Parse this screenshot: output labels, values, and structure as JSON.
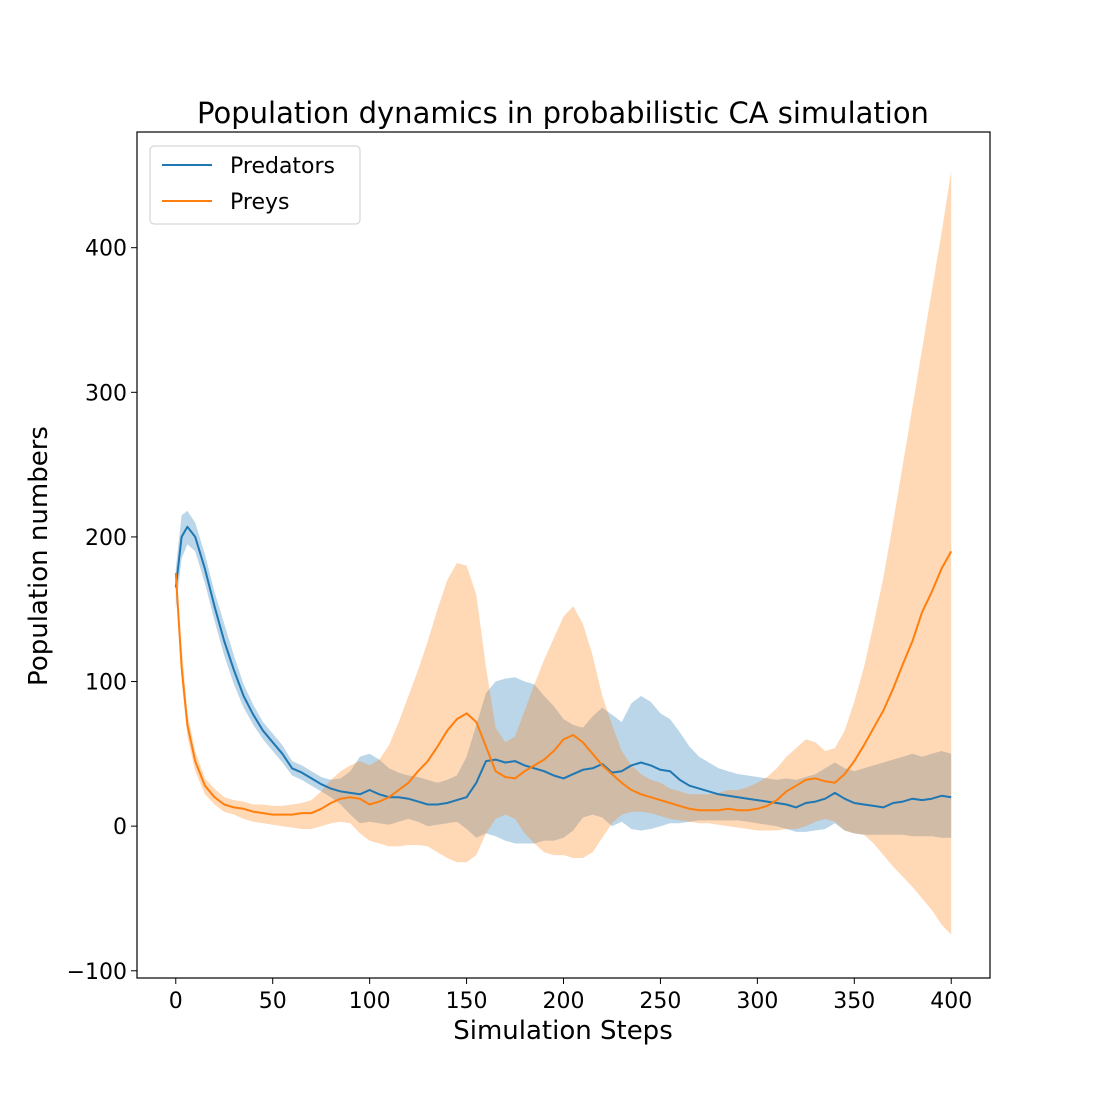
{
  "chart_data": {
    "type": "line",
    "title": "Population dynamics in probabilistic CA simulation",
    "xlabel": "Simulation Steps",
    "ylabel": "Population numbers",
    "xlim": [
      -20,
      420
    ],
    "ylim": [
      -105,
      480
    ],
    "x_ticks": [
      0,
      50,
      100,
      150,
      200,
      250,
      300,
      350,
      400
    ],
    "x_tick_labels": [
      "0",
      "50",
      "100",
      "150",
      "200",
      "250",
      "300",
      "350",
      "400"
    ],
    "y_ticks": [
      -100,
      0,
      100,
      200,
      300,
      400
    ],
    "y_tick_labels": [
      "−100",
      "0",
      "100",
      "200",
      "300",
      "400"
    ],
    "grid": false,
    "legend_position": "top-left",
    "series": [
      {
        "name": "Predators",
        "color": "#1f77b4",
        "band_color": "#1f77b4",
        "band_opacity": 0.3,
        "x": [
          0,
          3,
          6,
          10,
          15,
          20,
          25,
          30,
          35,
          40,
          45,
          50,
          55,
          60,
          65,
          70,
          75,
          80,
          85,
          90,
          95,
          100,
          105,
          110,
          115,
          120,
          125,
          130,
          135,
          140,
          145,
          150,
          155,
          160,
          165,
          170,
          175,
          180,
          185,
          190,
          195,
          200,
          205,
          210,
          215,
          220,
          225,
          230,
          235,
          240,
          245,
          250,
          255,
          260,
          265,
          270,
          275,
          280,
          285,
          290,
          295,
          300,
          305,
          310,
          315,
          320,
          325,
          330,
          335,
          340,
          345,
          350,
          355,
          360,
          365,
          370,
          375,
          380,
          385,
          390,
          395,
          400
        ],
        "mean": [
          165,
          200,
          207,
          200,
          178,
          152,
          128,
          108,
          90,
          77,
          66,
          58,
          50,
          40,
          37,
          33,
          29,
          26,
          24,
          23,
          22,
          25,
          22,
          20,
          20,
          19,
          17,
          15,
          15,
          16,
          18,
          20,
          30,
          45,
          46,
          44,
          45,
          42,
          40,
          38,
          35,
          33,
          36,
          39,
          40,
          43,
          37,
          38,
          42,
          44,
          42,
          39,
          38,
          32,
          28,
          26,
          24,
          22,
          21,
          20,
          19,
          18,
          17,
          16,
          15,
          13,
          16,
          17,
          19,
          23,
          19,
          16,
          15,
          14,
          13,
          16,
          17,
          19,
          18,
          19,
          21,
          20
        ],
        "upper": [
          178,
          215,
          218,
          210,
          188,
          162,
          140,
          118,
          98,
          84,
          72,
          64,
          56,
          45,
          42,
          38,
          34,
          32,
          33,
          38,
          48,
          50,
          46,
          40,
          37,
          35,
          34,
          32,
          30,
          32,
          35,
          48,
          70,
          92,
          100,
          102,
          103,
          100,
          98,
          90,
          83,
          74,
          70,
          68,
          76,
          82,
          77,
          72,
          85,
          90,
          86,
          78,
          74,
          65,
          55,
          48,
          44,
          40,
          38,
          36,
          35,
          34,
          33,
          32,
          33,
          32,
          34,
          36,
          40,
          44,
          40,
          38,
          40,
          42,
          44,
          46,
          48,
          50,
          48,
          50,
          52,
          50
        ],
        "lower": [
          150,
          185,
          195,
          190,
          168,
          142,
          118,
          98,
          82,
          70,
          60,
          52,
          44,
          35,
          32,
          28,
          24,
          20,
          15,
          8,
          2,
          3,
          2,
          1,
          3,
          5,
          3,
          0,
          1,
          2,
          3,
          -2,
          -8,
          -5,
          -7,
          -10,
          -12,
          -12,
          -12,
          -10,
          -10,
          -8,
          -3,
          6,
          8,
          6,
          0,
          3,
          -2,
          -3,
          -2,
          0,
          2,
          2,
          3,
          4,
          4,
          4,
          4,
          4,
          3,
          2,
          1,
          0,
          -2,
          -4,
          -4,
          -3,
          -2,
          2,
          -3,
          -5,
          -6,
          -6,
          -6,
          -6,
          -6,
          -7,
          -7,
          -7,
          -8,
          -8
        ]
      },
      {
        "name": "Preys",
        "color": "#ff7f0e",
        "band_color": "#ff7f0e",
        "band_opacity": 0.3,
        "x": [
          0,
          3,
          6,
          10,
          15,
          20,
          25,
          30,
          35,
          40,
          45,
          50,
          55,
          60,
          65,
          70,
          75,
          80,
          85,
          90,
          95,
          100,
          105,
          110,
          115,
          120,
          125,
          130,
          135,
          140,
          145,
          150,
          155,
          160,
          165,
          170,
          175,
          180,
          185,
          190,
          195,
          200,
          205,
          210,
          215,
          220,
          225,
          230,
          235,
          240,
          245,
          250,
          255,
          260,
          265,
          270,
          275,
          280,
          285,
          290,
          295,
          300,
          305,
          310,
          315,
          320,
          325,
          330,
          335,
          340,
          345,
          350,
          355,
          360,
          365,
          370,
          375,
          380,
          385,
          390,
          395,
          400
        ],
        "mean": [
          175,
          110,
          70,
          45,
          28,
          20,
          15,
          13,
          12,
          10,
          9,
          8,
          8,
          8,
          9,
          9,
          12,
          16,
          19,
          20,
          19,
          15,
          17,
          20,
          25,
          30,
          38,
          45,
          55,
          66,
          74,
          78,
          72,
          55,
          38,
          34,
          33,
          38,
          42,
          46,
          52,
          60,
          63,
          58,
          50,
          42,
          36,
          30,
          25,
          22,
          20,
          18,
          16,
          14,
          12,
          11,
          11,
          11,
          12,
          11,
          11,
          12,
          14,
          18,
          24,
          28,
          32,
          33,
          31,
          30,
          36,
          45,
          56,
          68,
          80,
          95,
          112,
          128,
          148,
          162,
          178,
          190
        ],
        "upper": [
          178,
          125,
          78,
          52,
          33,
          26,
          20,
          18,
          17,
          15,
          15,
          14,
          14,
          15,
          16,
          18,
          24,
          32,
          38,
          42,
          45,
          42,
          46,
          56,
          72,
          90,
          108,
          128,
          150,
          170,
          182,
          180,
          160,
          110,
          68,
          58,
          62,
          80,
          98,
          115,
          130,
          145,
          152,
          140,
          118,
          90,
          70,
          52,
          42,
          36,
          32,
          30,
          26,
          24,
          22,
          22,
          22,
          23,
          25,
          25,
          27,
          30,
          34,
          40,
          48,
          54,
          60,
          58,
          52,
          54,
          66,
          86,
          110,
          140,
          172,
          210,
          250,
          290,
          330,
          370,
          410,
          453
        ],
        "lower": [
          170,
          100,
          62,
          38,
          22,
          15,
          10,
          8,
          5,
          3,
          2,
          1,
          0,
          -1,
          -2,
          -2,
          0,
          2,
          3,
          2,
          -5,
          -10,
          -12,
          -14,
          -14,
          -13,
          -13,
          -14,
          -18,
          -22,
          -25,
          -25,
          -20,
          -5,
          5,
          8,
          5,
          -5,
          -12,
          -18,
          -20,
          -20,
          -22,
          -22,
          -18,
          -8,
          2,
          8,
          10,
          10,
          9,
          7,
          5,
          4,
          3,
          2,
          2,
          1,
          0,
          -1,
          -2,
          -3,
          -3,
          -3,
          -2,
          -2,
          0,
          3,
          5,
          3,
          -3,
          -5,
          -6,
          -12,
          -20,
          -28,
          -35,
          -42,
          -50,
          -58,
          -68,
          -75
        ]
      }
    ]
  }
}
